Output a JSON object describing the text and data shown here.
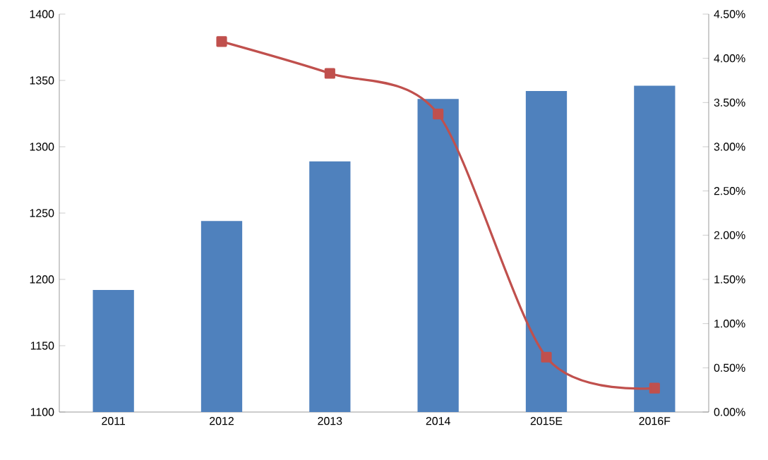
{
  "chart_data": {
    "type": "bar",
    "categories": [
      "2011",
      "2012",
      "2013",
      "2014",
      "2015E",
      "2016F"
    ],
    "series": [
      {
        "color": "#4f81bd",
        "values": [
          1192,
          1244,
          1289,
          1336,
          1342,
          1346
        ]
      },
      {
        "type": "line",
        "axis": "y2",
        "color": "#c0504d",
        "marker": "square",
        "values": [
          null,
          4.19,
          3.83,
          3.37,
          0.62,
          0.27
        ]
      }
    ],
    "ylim": [
      1100,
      1400
    ],
    "yticks": [
      1100,
      1150,
      1200,
      1250,
      1300,
      1350,
      1400
    ],
    "y2lim": [
      0,
      4.5
    ],
    "y2ticks": [
      {
        "value": 0,
        "label": "0.00%"
      },
      {
        "value": 0.5,
        "label": "0.50%"
      },
      {
        "value": 1,
        "label": "1.00%"
      },
      {
        "value": 1.5,
        "label": "1.50%"
      },
      {
        "value": 2,
        "label": "2.00%"
      },
      {
        "value": 2.5,
        "label": "2.50%"
      },
      {
        "value": 3,
        "label": "3.00%"
      },
      {
        "value": 3.5,
        "label": "3.50%"
      },
      {
        "value": 4,
        "label": "4.00%"
      },
      {
        "value": 4.5,
        "label": "4.50%"
      }
    ]
  }
}
